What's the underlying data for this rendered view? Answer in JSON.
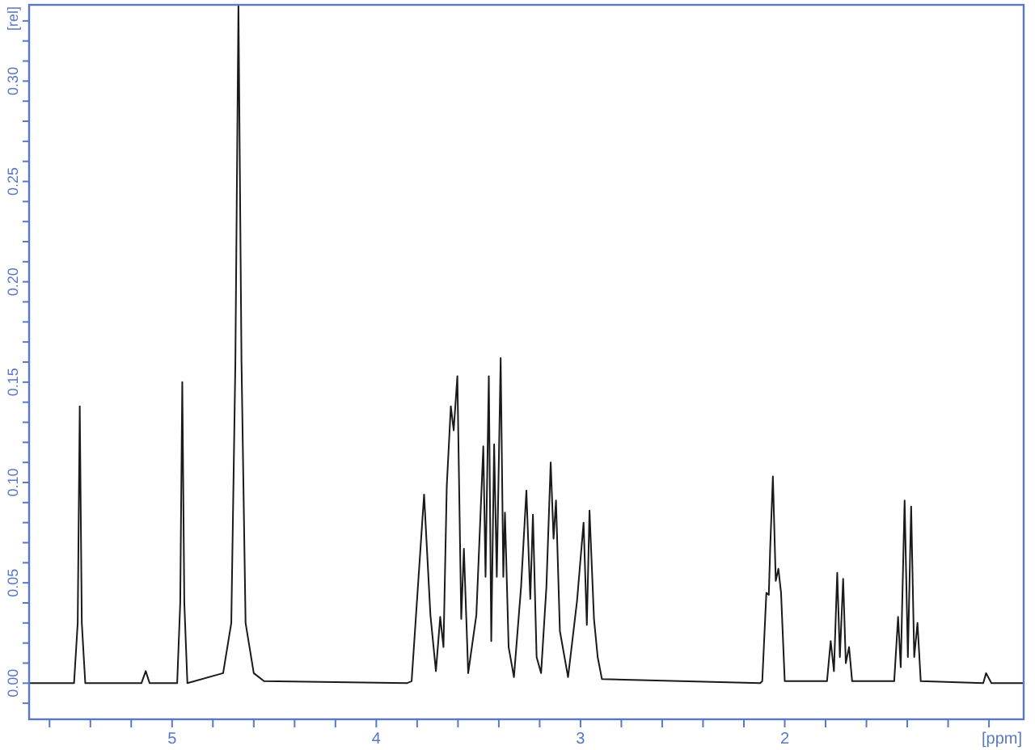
{
  "chart_data": {
    "type": "line",
    "xlabel": "[ppm]",
    "ylabel": "[rel]",
    "xlim": [
      5.7,
      0.83
    ],
    "ylim": [
      -0.018,
      0.338
    ],
    "xticks": [
      {
        "value": 5.6,
        "label": null
      },
      {
        "value": 5.4,
        "label": null
      },
      {
        "value": 5.2,
        "label": null
      },
      5,
      {
        "value": 4.8,
        "label": null
      },
      {
        "value": 4.6,
        "label": null
      },
      {
        "value": 4.4,
        "label": null
      },
      {
        "value": 4.2,
        "label": null
      },
      4,
      {
        "value": 3.8,
        "label": null
      },
      {
        "value": 3.6,
        "label": null
      },
      {
        "value": 3.4,
        "label": null
      },
      {
        "value": 3.2,
        "label": null
      },
      3,
      {
        "value": 2.8,
        "label": null
      },
      {
        "value": 2.6,
        "label": null
      },
      {
        "value": 2.4,
        "label": null
      },
      {
        "value": 2.2,
        "label": null
      },
      2,
      {
        "value": 1.8,
        "label": null
      },
      {
        "value": 1.6,
        "label": null
      },
      {
        "value": 1.4,
        "label": null
      },
      {
        "value": 1.2,
        "label": null
      },
      {
        "value": 1.0,
        "label": null
      }
    ],
    "yticks": [
      {
        "value": -0.01,
        "label": null
      },
      {
        "value": 0,
        "label": "0.00"
      },
      {
        "value": 0.01,
        "label": null
      },
      {
        "value": 0.02,
        "label": null
      },
      {
        "value": 0.03,
        "label": null
      },
      {
        "value": 0.04,
        "label": null
      },
      {
        "value": 0.05,
        "label": "0.05"
      },
      {
        "value": 0.06,
        "label": null
      },
      {
        "value": 0.07,
        "label": null
      },
      {
        "value": 0.08,
        "label": null
      },
      {
        "value": 0.09,
        "label": null
      },
      {
        "value": 0.1,
        "label": "0.10"
      },
      {
        "value": 0.11,
        "label": null
      },
      {
        "value": 0.12,
        "label": null
      },
      {
        "value": 0.13,
        "label": null
      },
      {
        "value": 0.14,
        "label": null
      },
      {
        "value": 0.15,
        "label": "0.15"
      },
      {
        "value": 0.16,
        "label": null
      },
      {
        "value": 0.17,
        "label": null
      },
      {
        "value": 0.18,
        "label": null
      },
      {
        "value": 0.19,
        "label": null
      },
      {
        "value": 0.2,
        "label": "0.20"
      },
      {
        "value": 0.21,
        "label": null
      },
      {
        "value": 0.22,
        "label": null
      },
      {
        "value": 0.23,
        "label": null
      },
      {
        "value": 0.24,
        "label": null
      },
      {
        "value": 0.25,
        "label": "0.25"
      },
      {
        "value": 0.26,
        "label": null
      },
      {
        "value": 0.27,
        "label": null
      },
      {
        "value": 0.28,
        "label": null
      },
      {
        "value": 0.29,
        "label": null
      },
      {
        "value": 0.3,
        "label": "0.30"
      },
      {
        "value": 0.31,
        "label": null
      },
      {
        "value": 0.32,
        "label": null
      },
      {
        "value": 0.33,
        "label": null
      }
    ],
    "series": [
      {
        "color": "#1a1a1a",
        "x": [
          5.7,
          5.48,
          5.462,
          5.452,
          5.442,
          5.425,
          5.15,
          5.129,
          5.11,
          4.975,
          4.96,
          4.95,
          4.94,
          4.925,
          4.75,
          4.71,
          4.69,
          4.675,
          4.66,
          4.64,
          4.6,
          4.55,
          3.85,
          3.827,
          3.766,
          3.735,
          3.708,
          3.687,
          3.671,
          3.655,
          3.635,
          3.621,
          3.603,
          3.584,
          3.571,
          3.55,
          3.51,
          3.476,
          3.465,
          3.449,
          3.437,
          3.423,
          3.41,
          3.391,
          3.378,
          3.37,
          3.352,
          3.326,
          3.291,
          3.265,
          3.246,
          3.233,
          3.215,
          3.193,
          3.167,
          3.146,
          3.132,
          3.12,
          3.101,
          3.061,
          3.017,
          2.985,
          2.969,
          2.956,
          2.934,
          2.916,
          2.895,
          2.12,
          2.11,
          2.09,
          2.078,
          2.071,
          2.058,
          2.044,
          2.031,
          2.018,
          2.0,
          1.793,
          1.775,
          1.759,
          1.743,
          1.73,
          1.714,
          1.701,
          1.685,
          1.67,
          1.464,
          1.445,
          1.432,
          1.413,
          1.397,
          1.381,
          1.366,
          1.35,
          1.334,
          1.028,
          1.014,
          0.988,
          0.83
        ],
        "values": [
          0,
          0,
          0.03,
          0.138,
          0.03,
          0,
          0,
          0.006,
          0,
          0,
          0.04,
          0.15,
          0.04,
          0,
          0.005,
          0.03,
          0.16,
          0.338,
          0.16,
          0.03,
          0.005,
          0.001,
          0,
          0.001,
          0.094,
          0.034,
          0.006,
          0.033,
          0.018,
          0.098,
          0.138,
          0.126,
          0.153,
          0.032,
          0.067,
          0.005,
          0.034,
          0.118,
          0.053,
          0.153,
          0.021,
          0.119,
          0.053,
          0.162,
          0.053,
          0.085,
          0.018,
          0.003,
          0.048,
          0.096,
          0.042,
          0.084,
          0.013,
          0.005,
          0.048,
          0.11,
          0.072,
          0.091,
          0.026,
          0.003,
          0.041,
          0.08,
          0.029,
          0.086,
          0.032,
          0.013,
          0.002,
          0,
          0.001,
          0.045,
          0.044,
          0.068,
          0.103,
          0.051,
          0.057,
          0.045,
          0.001,
          0.001,
          0.021,
          0.006,
          0.055,
          0.013,
          0.052,
          0.01,
          0.018,
          0.001,
          0.001,
          0.033,
          0.008,
          0.091,
          0.013,
          0.088,
          0.013,
          0.03,
          0.001,
          0,
          0.005,
          0,
          0
        ]
      }
    ]
  }
}
